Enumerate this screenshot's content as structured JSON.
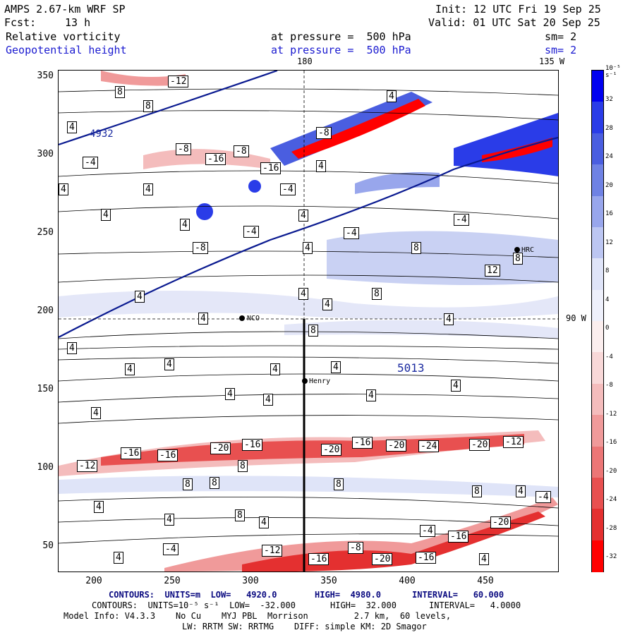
{
  "header": {
    "model": "AMPS 2.67-km WRF SP",
    "init": "Init: 12 UTC Fri 19 Sep 25",
    "fcst_label": "Fcst:",
    "fcst_value": "13 h",
    "valid": "Valid: 01 UTC Sat 20 Sep 25",
    "field1_name": "Relative vorticity",
    "field1_level": "at pressure =  500 hPa",
    "field1_sm": "sm= 2",
    "field2_name": "Geopotential height",
    "field2_level": "at pressure =  500 hPa",
    "field2_sm": "sm= 2",
    "lon_top_a": "180",
    "lon_top_b": "135 W",
    "lat_right": "90 W"
  },
  "axes": {
    "y_ticks": [
      "350",
      "300",
      "250",
      "200",
      "150",
      "100",
      "50"
    ],
    "x_ticks": [
      "200",
      "250",
      "300",
      "350",
      "400",
      "450"
    ]
  },
  "colorbar": {
    "unit": "10⁻⁵ s⁻¹",
    "labels": [
      "32",
      "28",
      "24",
      "20",
      "16",
      "12",
      "8",
      "4",
      "0",
      "-4",
      "-8",
      "-12",
      "-16",
      "-20",
      "-24",
      "-28",
      "-32"
    ],
    "colors": [
      "#0000f0",
      "#2a3ce8",
      "#4a5ee0",
      "#6f82e4",
      "#98a6ec",
      "#bcc6f2",
      "#dfe4f8",
      "#eef0fb",
      "#fbeeee",
      "#f8d8d8",
      "#f4bcbc",
      "#f09a9a",
      "#ec7676",
      "#e85050",
      "#e43030",
      "#ff0000"
    ]
  },
  "stations": {
    "nco": "NCO",
    "henry": "Henry",
    "hrc": "HRC"
  },
  "height_label": "5013",
  "height_label_small": "4932",
  "contour_labels": [
    "8",
    "-12",
    "4",
    "8",
    "4",
    "4",
    "4",
    "-4",
    "-8",
    "-16",
    "-8",
    "-16",
    "-4",
    "4",
    "-4",
    "4",
    "-8",
    "4",
    "4",
    "-4",
    "-8",
    "4",
    "-4",
    "8",
    "12",
    "8",
    "4",
    "4",
    "4",
    "8",
    "4",
    "4",
    "8",
    "4",
    "4",
    "4",
    "4",
    "4",
    "4",
    "4",
    "4",
    "4",
    "4",
    "-16",
    "-16",
    "-20",
    "-16",
    "-20",
    "-16",
    "-20",
    "-24",
    "-20",
    "-12",
    "-12",
    "8",
    "8",
    "8",
    "8",
    "8",
    "4",
    "4",
    "-4",
    "4",
    "8",
    "4",
    "-4",
    "4",
    "-20",
    "-16",
    "-8",
    "-12",
    "-16",
    "-20",
    "-16",
    "-4",
    "4",
    "4"
  ],
  "footer": {
    "line1_a": "CONTOURS:  UNITS=m  LOW=   4920.0",
    "line1_b": "HIGH=  4980.0",
    "line1_c": "INTERVAL=   60.000",
    "line2_a": "CONTOURS:  UNITS=10⁻⁵ s⁻¹  LOW=  -32.000",
    "line2_b": "HIGH=  32.000",
    "line2_c": "INTERVAL=   4.0000",
    "line3": "Model Info: V4.3.3    No Cu    MYJ PBL  Morrison         2.7 km,  60 levels,",
    "line4": "LW: RRTM SW: RRTMG    DIFF: simple KM: 2D Smagor"
  }
}
